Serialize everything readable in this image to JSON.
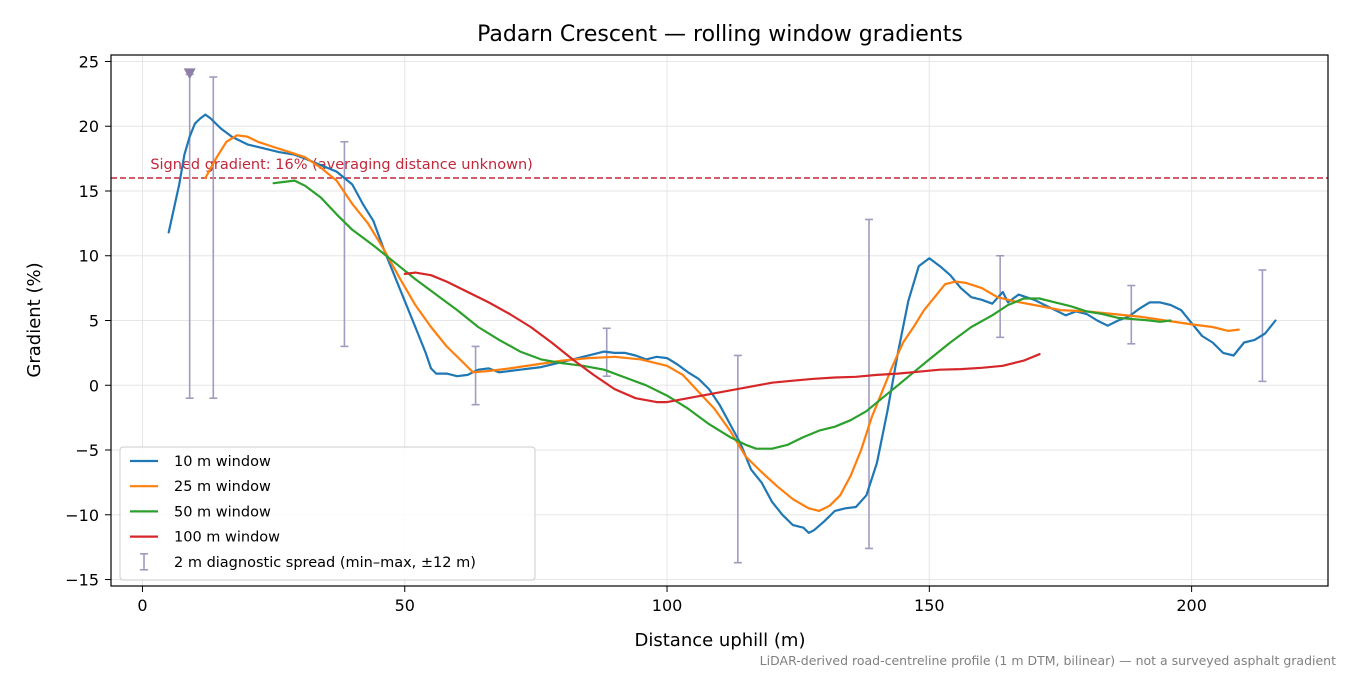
{
  "chart_data": {
    "type": "line",
    "title": "Padarn Crescent — rolling window gradients",
    "xlabel": "Distance uphill (m)",
    "ylabel": "Gradient (%)",
    "xlim": [
      -6,
      226
    ],
    "ylim": [
      -15.5,
      25.5
    ],
    "xticks": [
      0,
      50,
      100,
      150,
      200
    ],
    "yticks": [
      -15,
      -10,
      -5,
      0,
      5,
      10,
      15,
      20,
      25
    ],
    "xtick_labels": [
      "0",
      "50",
      "100",
      "150",
      "200"
    ],
    "ytick_labels": [
      "−15",
      "−10",
      "−5",
      "0",
      "5",
      "10",
      "15",
      "20",
      "25"
    ],
    "grid": true,
    "legend_position": "lower-left",
    "series": [
      {
        "name": "10 m window",
        "color": "#1f77b4",
        "points": [
          [
            5,
            11.8
          ],
          [
            7,
            15.5
          ],
          [
            8,
            17.8
          ],
          [
            9,
            19.2
          ],
          [
            10,
            20.2
          ],
          [
            11,
            20.6
          ],
          [
            12,
            20.9
          ],
          [
            13,
            20.6
          ],
          [
            15,
            19.8
          ],
          [
            17,
            19.2
          ],
          [
            20,
            18.6
          ],
          [
            23,
            18.3
          ],
          [
            26,
            18.0
          ],
          [
            29,
            17.8
          ],
          [
            31,
            17.5
          ],
          [
            34,
            17.0
          ],
          [
            37,
            16.5
          ],
          [
            40,
            15.5
          ],
          [
            42,
            14.0
          ],
          [
            44,
            12.7
          ],
          [
            46,
            10.5
          ],
          [
            48,
            8.5
          ],
          [
            50,
            6.5
          ],
          [
            52,
            4.5
          ],
          [
            54,
            2.5
          ],
          [
            55,
            1.3
          ],
          [
            56,
            0.9
          ],
          [
            58,
            0.9
          ],
          [
            60,
            0.7
          ],
          [
            62,
            0.8
          ],
          [
            64,
            1.2
          ],
          [
            66,
            1.3
          ],
          [
            68,
            1.0
          ],
          [
            70,
            1.1
          ],
          [
            72,
            1.2
          ],
          [
            74,
            1.3
          ],
          [
            76,
            1.4
          ],
          [
            78,
            1.6
          ],
          [
            80,
            1.8
          ],
          [
            82,
            2.0
          ],
          [
            84,
            2.2
          ],
          [
            86,
            2.4
          ],
          [
            88,
            2.6
          ],
          [
            90,
            2.5
          ],
          [
            92,
            2.5
          ],
          [
            94,
            2.3
          ],
          [
            96,
            2.0
          ],
          [
            98,
            2.2
          ],
          [
            100,
            2.1
          ],
          [
            102,
            1.6
          ],
          [
            104,
            1.0
          ],
          [
            106,
            0.5
          ],
          [
            108,
            -0.3
          ],
          [
            110,
            -1.5
          ],
          [
            112,
            -3.0
          ],
          [
            114,
            -4.5
          ],
          [
            116,
            -6.5
          ],
          [
            118,
            -7.5
          ],
          [
            120,
            -9.0
          ],
          [
            122,
            -10.0
          ],
          [
            124,
            -10.8
          ],
          [
            126,
            -11.0
          ],
          [
            127,
            -11.4
          ],
          [
            128,
            -11.2
          ],
          [
            130,
            -10.5
          ],
          [
            132,
            -9.7
          ],
          [
            134,
            -9.5
          ],
          [
            136,
            -9.4
          ],
          [
            138,
            -8.5
          ],
          [
            140,
            -6.0
          ],
          [
            142,
            -2.0
          ],
          [
            144,
            2.5
          ],
          [
            146,
            6.5
          ],
          [
            148,
            9.2
          ],
          [
            150,
            9.8
          ],
          [
            152,
            9.2
          ],
          [
            154,
            8.5
          ],
          [
            156,
            7.5
          ],
          [
            158,
            6.8
          ],
          [
            160,
            6.6
          ],
          [
            162,
            6.3
          ],
          [
            164,
            7.2
          ],
          [
            165,
            6.4
          ],
          [
            167,
            7.0
          ],
          [
            170,
            6.6
          ],
          [
            172,
            6.2
          ],
          [
            174,
            5.8
          ],
          [
            176,
            5.4
          ],
          [
            178,
            5.7
          ],
          [
            180,
            5.5
          ],
          [
            182,
            5.0
          ],
          [
            184,
            4.6
          ],
          [
            186,
            5.0
          ],
          [
            188,
            5.3
          ],
          [
            190,
            5.9
          ],
          [
            192,
            6.4
          ],
          [
            194,
            6.4
          ],
          [
            196,
            6.2
          ],
          [
            198,
            5.8
          ],
          [
            200,
            4.8
          ],
          [
            202,
            3.8
          ],
          [
            204,
            3.3
          ],
          [
            206,
            2.5
          ],
          [
            208,
            2.3
          ],
          [
            210,
            3.3
          ],
          [
            212,
            3.5
          ],
          [
            214,
            4.0
          ],
          [
            216,
            5.0
          ]
        ]
      },
      {
        "name": "25 m window",
        "color": "#ff7f0e",
        "points": [
          [
            12,
            16.0
          ],
          [
            14,
            17.5
          ],
          [
            16,
            18.8
          ],
          [
            18,
            19.3
          ],
          [
            20,
            19.2
          ],
          [
            22,
            18.8
          ],
          [
            25,
            18.4
          ],
          [
            28,
            18.0
          ],
          [
            31,
            17.6
          ],
          [
            34,
            16.8
          ],
          [
            37,
            15.8
          ],
          [
            40,
            14.0
          ],
          [
            43,
            12.5
          ],
          [
            46,
            10.5
          ],
          [
            49,
            8.3
          ],
          [
            52,
            6.2
          ],
          [
            55,
            4.5
          ],
          [
            58,
            3.0
          ],
          [
            61,
            1.8
          ],
          [
            63,
            1.0
          ],
          [
            66,
            1.1
          ],
          [
            70,
            1.3
          ],
          [
            75,
            1.6
          ],
          [
            80,
            1.9
          ],
          [
            85,
            2.1
          ],
          [
            90,
            2.2
          ],
          [
            95,
            2.0
          ],
          [
            100,
            1.5
          ],
          [
            103,
            0.8
          ],
          [
            106,
            -0.5
          ],
          [
            109,
            -1.8
          ],
          [
            112,
            -3.5
          ],
          [
            115,
            -5.5
          ],
          [
            118,
            -6.7
          ],
          [
            121,
            -7.8
          ],
          [
            124,
            -8.8
          ],
          [
            127,
            -9.5
          ],
          [
            129,
            -9.7
          ],
          [
            131,
            -9.3
          ],
          [
            133,
            -8.5
          ],
          [
            135,
            -7.0
          ],
          [
            137,
            -5.0
          ],
          [
            139,
            -2.5
          ],
          [
            141,
            -0.5
          ],
          [
            143,
            1.5
          ],
          [
            145,
            3.3
          ],
          [
            147,
            4.5
          ],
          [
            149,
            5.8
          ],
          [
            151,
            6.8
          ],
          [
            153,
            7.8
          ],
          [
            155,
            8.0
          ],
          [
            157,
            7.9
          ],
          [
            160,
            7.5
          ],
          [
            163,
            6.8
          ],
          [
            166,
            6.5
          ],
          [
            170,
            6.2
          ],
          [
            175,
            5.8
          ],
          [
            180,
            5.7
          ],
          [
            185,
            5.5
          ],
          [
            190,
            5.3
          ],
          [
            195,
            5.0
          ],
          [
            200,
            4.7
          ],
          [
            204,
            4.5
          ],
          [
            207,
            4.2
          ],
          [
            209,
            4.3
          ]
        ]
      },
      {
        "name": "50 m window",
        "color": "#2ca02c",
        "points": [
          [
            25,
            15.6
          ],
          [
            27,
            15.7
          ],
          [
            29,
            15.8
          ],
          [
            31,
            15.4
          ],
          [
            34,
            14.5
          ],
          [
            37,
            13.2
          ],
          [
            40,
            12.0
          ],
          [
            44,
            10.8
          ],
          [
            48,
            9.5
          ],
          [
            52,
            8.2
          ],
          [
            56,
            7.0
          ],
          [
            60,
            5.8
          ],
          [
            64,
            4.5
          ],
          [
            68,
            3.5
          ],
          [
            72,
            2.6
          ],
          [
            76,
            2.0
          ],
          [
            80,
            1.7
          ],
          [
            84,
            1.5
          ],
          [
            88,
            1.2
          ],
          [
            92,
            0.6
          ],
          [
            96,
            0.0
          ],
          [
            100,
            -0.8
          ],
          [
            104,
            -1.8
          ],
          [
            108,
            -3.0
          ],
          [
            112,
            -4.0
          ],
          [
            115,
            -4.6
          ],
          [
            117,
            -4.9
          ],
          [
            120,
            -4.9
          ],
          [
            123,
            -4.6
          ],
          [
            126,
            -4.0
          ],
          [
            129,
            -3.5
          ],
          [
            132,
            -3.2
          ],
          [
            135,
            -2.7
          ],
          [
            138,
            -2.0
          ],
          [
            141,
            -1.0
          ],
          [
            144,
            0.0
          ],
          [
            147,
            1.0
          ],
          [
            150,
            2.0
          ],
          [
            154,
            3.3
          ],
          [
            158,
            4.5
          ],
          [
            162,
            5.4
          ],
          [
            165,
            6.2
          ],
          [
            168,
            6.7
          ],
          [
            171,
            6.7
          ],
          [
            174,
            6.4
          ],
          [
            177,
            6.1
          ],
          [
            180,
            5.7
          ],
          [
            183,
            5.5
          ],
          [
            186,
            5.2
          ],
          [
            189,
            5.1
          ],
          [
            192,
            5.0
          ],
          [
            194,
            4.9
          ],
          [
            196,
            5.0
          ]
        ]
      },
      {
        "name": "100 m window",
        "color": "#d62728",
        "points": [
          [
            50,
            8.6
          ],
          [
            52,
            8.7
          ],
          [
            55,
            8.5
          ],
          [
            58,
            8.0
          ],
          [
            62,
            7.2
          ],
          [
            66,
            6.4
          ],
          [
            70,
            5.5
          ],
          [
            74,
            4.5
          ],
          [
            78,
            3.3
          ],
          [
            82,
            2.0
          ],
          [
            86,
            0.8
          ],
          [
            90,
            -0.3
          ],
          [
            94,
            -1.0
          ],
          [
            98,
            -1.3
          ],
          [
            100,
            -1.3
          ],
          [
            104,
            -1.0
          ],
          [
            108,
            -0.7
          ],
          [
            112,
            -0.4
          ],
          [
            116,
            -0.1
          ],
          [
            120,
            0.2
          ],
          [
            124,
            0.35
          ],
          [
            128,
            0.5
          ],
          [
            132,
            0.6
          ],
          [
            136,
            0.65
          ],
          [
            140,
            0.8
          ],
          [
            144,
            0.9
          ],
          [
            148,
            1.05
          ],
          [
            152,
            1.2
          ],
          [
            156,
            1.25
          ],
          [
            160,
            1.35
          ],
          [
            164,
            1.5
          ],
          [
            168,
            1.9
          ],
          [
            171,
            2.4
          ]
        ]
      },
      {
        "name": "2 m diagnostic spread (min–max, ±12 m)",
        "color": "#a09cc0",
        "type": "errorbar",
        "bars": [
          [
            9,
            -1.0,
            24.0
          ],
          [
            13.5,
            -1.0,
            23.8
          ],
          [
            38.5,
            3.0,
            18.8
          ],
          [
            63.5,
            -1.5,
            3.0
          ],
          [
            88.5,
            0.7,
            4.4
          ],
          [
            113.5,
            -13.7,
            2.3
          ],
          [
            138.5,
            -12.6,
            12.8
          ],
          [
            163.5,
            3.7,
            10.0
          ],
          [
            188.5,
            3.2,
            7.7
          ],
          [
            213.5,
            0.3,
            8.9
          ]
        ]
      }
    ],
    "marker": {
      "x": 9,
      "y": 24.0,
      "shape": "down-triangle",
      "color": "#8e7fa8"
    },
    "reference_line": {
      "y": 16,
      "color": "#c0283a",
      "style": "dashed",
      "label": "Signed gradient: 16% (averaging distance unknown)"
    },
    "footer": "LiDAR-derived road-centreline profile (1 m DTM, bilinear) — not a surveyed asphalt gradient"
  }
}
